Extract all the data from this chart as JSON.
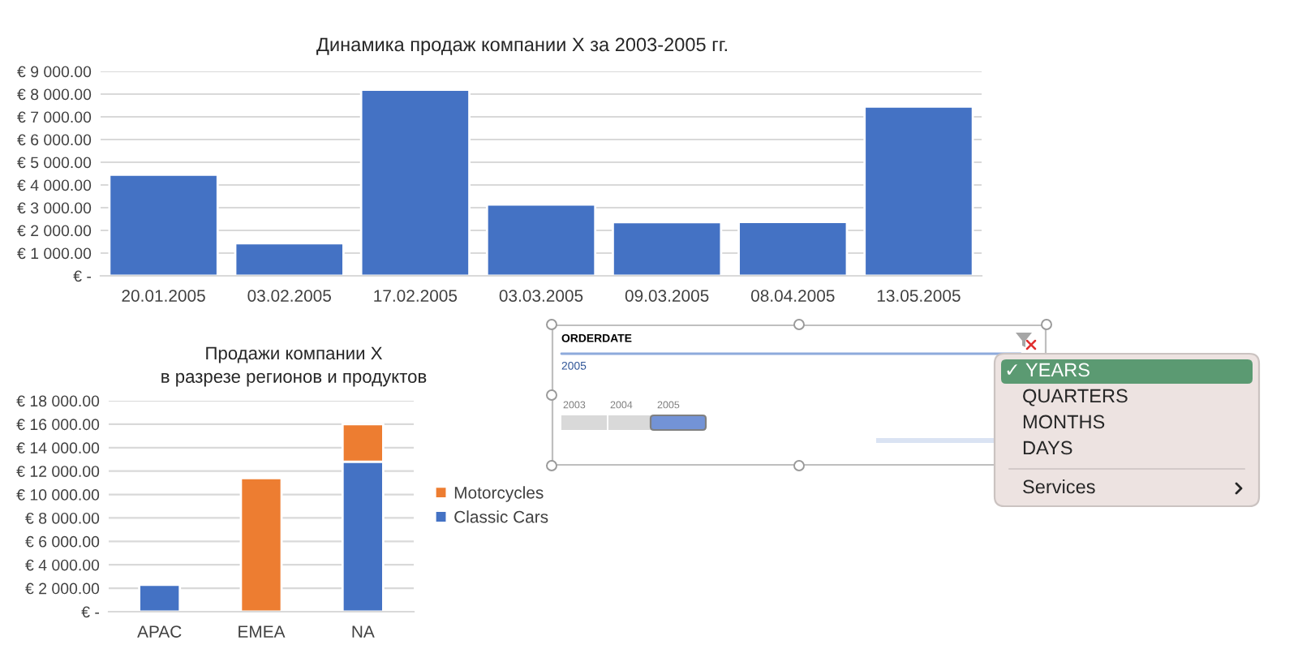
{
  "chart_data": [
    {
      "type": "bar",
      "title": "Динамика продаж компании X за 2003-2005 гг.",
      "categories": [
        "20.01.2005",
        "03.02.2005",
        "17.02.2005",
        "03.03.2005",
        "09.03.2005",
        "08.04.2005",
        "13.05.2005"
      ],
      "values": [
        4450,
        1430,
        8190,
        3140,
        2360,
        2370,
        7450
      ],
      "color": "#4472c4",
      "ylim": [
        0,
        9000
      ],
      "yticks": [
        {
          "value": 0,
          "label": "€ -"
        },
        {
          "value": 1000,
          "label": "€ 1 000.00"
        },
        {
          "value": 2000,
          "label": "€ 2 000.00"
        },
        {
          "value": 3000,
          "label": "€ 3 000.00"
        },
        {
          "value": 4000,
          "label": "€ 4 000.00"
        },
        {
          "value": 5000,
          "label": "€ 5 000.00"
        },
        {
          "value": 6000,
          "label": "€ 6 000.00"
        },
        {
          "value": 7000,
          "label": "€ 7 000.00"
        },
        {
          "value": 8000,
          "label": "€ 8 000.00"
        },
        {
          "value": 9000,
          "label": "€ 9 000.00"
        }
      ],
      "grid": "y"
    },
    {
      "type": "bar",
      "title": "Продажи компании X\nв разрезе регионов и продуктов",
      "categories": [
        "APAC",
        "EMEA",
        "NA"
      ],
      "stacked": true,
      "series": [
        {
          "name": "Classic Cars",
          "color": "#4472c4",
          "values": [
            2300,
            null,
            12800
          ]
        },
        {
          "name": "Motorcycles",
          "color": "#ed7d31",
          "values": [
            null,
            11400,
            3200
          ]
        }
      ],
      "ylim": [
        0,
        18000
      ],
      "yticks": [
        {
          "value": 0,
          "label": "€ -"
        },
        {
          "value": 2000,
          "label": "€ 2 000.00"
        },
        {
          "value": 4000,
          "label": "€ 4 000.00"
        },
        {
          "value": 6000,
          "label": "€ 6 000.00"
        },
        {
          "value": 8000,
          "label": "€ 8 000.00"
        },
        {
          "value": 10000,
          "label": "€ 10 000.00"
        },
        {
          "value": 12000,
          "label": "€ 12 000.00"
        },
        {
          "value": 14000,
          "label": "€ 14 000.00"
        },
        {
          "value": 16000,
          "label": "€ 16 000.00"
        },
        {
          "value": 18000,
          "label": "€ 18 000.00"
        }
      ],
      "grid": "y",
      "legend": "right"
    },
    {
      "type": "other",
      "title": "ORDERDATE",
      "annotations": [
        "2005",
        "2003",
        "2004",
        "2005"
      ]
    },
    {
      "type": "other",
      "annotations": [
        "✓ YEARS",
        "QUARTERS",
        "MONTHS",
        "DAYS",
        "Services"
      ]
    }
  ]
}
